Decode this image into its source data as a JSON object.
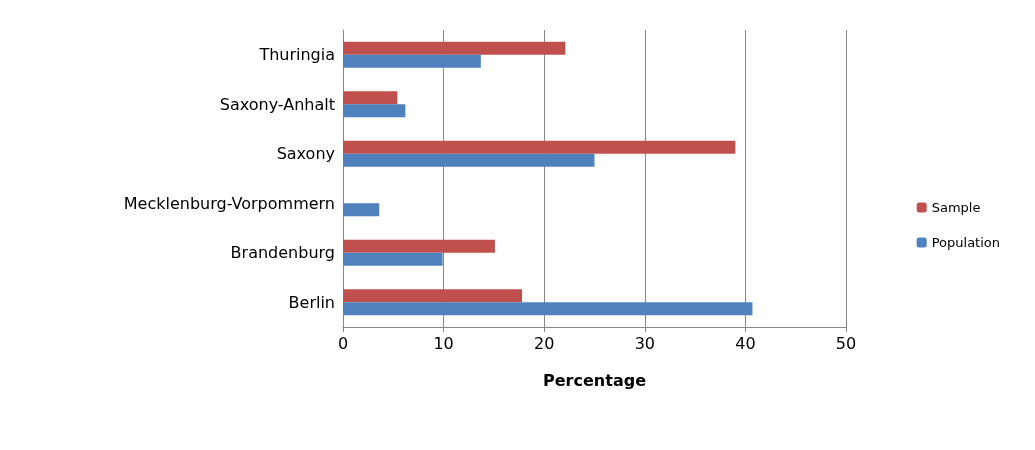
{
  "chart_data": {
    "type": "bar",
    "orientation": "horizontal",
    "xlabel": "Percentage",
    "categories": [
      "Thuringia",
      "Saxony-Anhalt",
      "Saxony",
      "Mecklenburg-Vorpommern",
      "Brandenburg",
      "Berlin"
    ],
    "series": [
      {
        "name": "Sample",
        "color": "#c0504d",
        "values": [
          22.1,
          5.4,
          39.0,
          0,
          15.1,
          17.8
        ]
      },
      {
        "name": "Population",
        "color": "#4f81bd",
        "values": [
          13.7,
          6.2,
          25.0,
          3.6,
          9.9,
          40.7
        ]
      }
    ],
    "xlim": [
      0,
      50
    ],
    "xticks": [
      0,
      10,
      20,
      30,
      40,
      50
    ],
    "grid": "x",
    "legend": "right"
  }
}
